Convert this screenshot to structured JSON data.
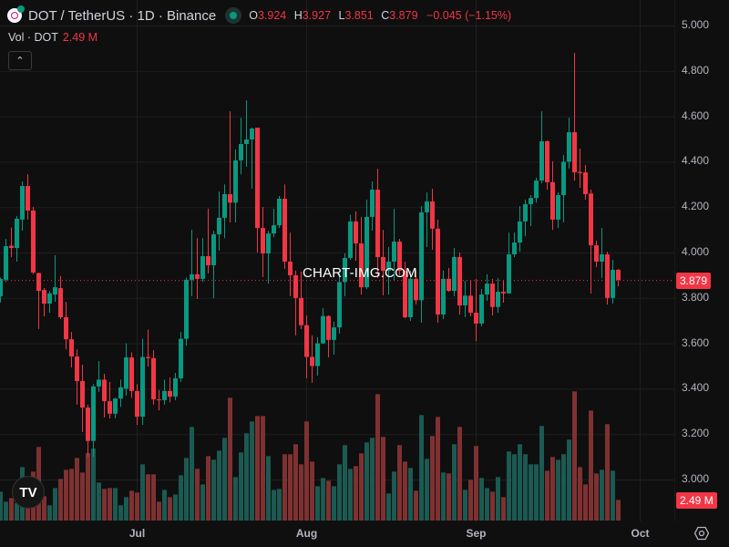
{
  "header": {
    "symbol_title": "DOT / TetherUS · 1D · Binance",
    "ohlc": {
      "o_label": "O",
      "o": "3.924",
      "h_label": "H",
      "h": "3.927",
      "l_label": "L",
      "l": "3.851",
      "c_label": "C",
      "c": "3.879",
      "change": "−0.045 (−1.15%)"
    }
  },
  "volume_legend": {
    "label": "Vol · DOT",
    "value": "2.49 M"
  },
  "collapse_icon": "chevron-up-icon",
  "price_axis": {
    "ticks": [
      "5.000",
      "4.800",
      "4.600",
      "4.400",
      "4.200",
      "4.000",
      "3.800",
      "3.600",
      "3.400",
      "3.200",
      "3.000"
    ],
    "last_price": "3.879",
    "last_volume": "2.49 M"
  },
  "time_axis": {
    "ticks": [
      "Jul",
      "Aug",
      "Sep",
      "Oct"
    ]
  },
  "watermark": "CHART-IMG.COM",
  "logo_text": "TV",
  "colors": {
    "up": "#089981",
    "down": "#f23645",
    "vol_up": "#1b5a52",
    "vol_down": "#7f3131",
    "grid": "#1f1f1f"
  },
  "chart_data": {
    "type": "candlestick",
    "title": "DOT / TetherUS · 1D · Binance",
    "ylim": [
      2.9,
      5.0
    ],
    "columns": [
      "open",
      "high",
      "low",
      "close",
      "volume_M"
    ],
    "candles": [
      [
        3.807,
        3.89,
        3.78,
        3.884,
        3.48
      ],
      [
        3.88,
        4.06,
        3.87,
        4.028,
        2.27
      ],
      [
        4.03,
        4.11,
        3.98,
        4.02,
        2.71
      ],
      [
        4.02,
        4.161,
        3.96,
        4.149,
        2.1
      ],
      [
        4.145,
        4.313,
        4.096,
        4.293,
        6.45
      ],
      [
        4.293,
        4.345,
        4.145,
        4.185,
        2.2
      ],
      [
        4.185,
        4.201,
        3.904,
        3.912,
        5.9
      ],
      [
        3.91,
        3.91,
        3.663,
        3.831,
        8.87
      ],
      [
        3.835,
        3.843,
        3.719,
        3.775,
        2.93
      ],
      [
        3.775,
        3.831,
        3.735,
        3.82,
        1.84
      ],
      [
        3.815,
        3.988,
        3.783,
        3.847,
        3.92
      ],
      [
        3.843,
        3.896,
        3.707,
        3.715,
        5.02
      ],
      [
        3.715,
        3.783,
        3.574,
        3.618,
        6.12
      ],
      [
        3.618,
        3.65,
        3.494,
        3.542,
        6.23
      ],
      [
        3.542,
        3.574,
        3.33,
        3.434,
        7.55
      ],
      [
        3.434,
        3.506,
        3.209,
        3.317,
        5.79
      ],
      [
        3.317,
        3.33,
        3.1,
        3.17,
        8.13
      ],
      [
        3.17,
        3.42,
        3.1,
        3.41,
        8.68
      ],
      [
        3.41,
        3.522,
        3.386,
        3.44,
        4.58
      ],
      [
        3.44,
        3.466,
        3.273,
        3.345,
        3.81
      ],
      [
        3.345,
        3.43,
        3.269,
        3.29,
        3.92
      ],
      [
        3.29,
        3.36,
        3.27,
        3.357,
        3.92
      ],
      [
        3.357,
        3.44,
        3.32,
        3.406,
        1.84
      ],
      [
        3.4,
        3.6,
        3.37,
        3.538,
        2.82
      ],
      [
        3.538,
        3.56,
        3.36,
        3.39,
        3.59
      ],
      [
        3.39,
        3.42,
        3.241,
        3.277,
        3.37
      ],
      [
        3.277,
        3.62,
        3.241,
        3.54,
        6.78
      ],
      [
        3.54,
        3.66,
        3.498,
        3.535,
        5.57
      ],
      [
        3.535,
        3.57,
        3.33,
        3.353,
        5.57
      ],
      [
        3.353,
        3.394,
        3.305,
        3.35,
        2.27
      ],
      [
        3.35,
        3.44,
        3.33,
        3.39,
        3.7
      ],
      [
        3.39,
        3.45,
        3.34,
        3.365,
        2.82
      ],
      [
        3.365,
        3.47,
        3.35,
        3.446,
        3.15
      ],
      [
        3.446,
        3.65,
        3.43,
        3.62,
        5.46
      ],
      [
        3.62,
        3.89,
        3.59,
        3.88,
        7.55
      ],
      [
        3.88,
        4.1,
        3.807,
        3.904,
        11.29
      ],
      [
        3.904,
        4.064,
        3.795,
        3.884,
        6.23
      ],
      [
        3.884,
        4.064,
        3.87,
        3.984,
        4.36
      ],
      [
        3.984,
        4.193,
        3.908,
        3.944,
        7.77
      ],
      [
        3.944,
        4.096,
        3.799,
        4.08,
        7.33
      ],
      [
        4.08,
        4.269,
        4.008,
        4.153,
        8.43
      ],
      [
        4.153,
        4.3,
        4.064,
        4.257,
        9.97
      ],
      [
        4.257,
        4.622,
        4.133,
        4.22,
        14.8
      ],
      [
        4.22,
        4.454,
        4.133,
        4.406,
        5.24
      ],
      [
        4.406,
        4.594,
        4.345,
        4.478,
        8.21
      ],
      [
        4.478,
        4.67,
        4.378,
        4.498,
        10.52
      ],
      [
        4.498,
        4.55,
        4.281,
        4.546,
        11.95
      ],
      [
        4.55,
        4.55,
        4.0,
        4.108,
        12.6
      ],
      [
        4.108,
        4.201,
        3.892,
        3.996,
        12.6
      ],
      [
        3.996,
        4.096,
        3.863,
        4.084,
        7.77
      ],
      [
        4.084,
        4.193,
        4.068,
        4.12,
        3.7
      ],
      [
        4.12,
        4.249,
        4.108,
        4.237,
        3.81
      ],
      [
        4.237,
        4.3,
        3.928,
        3.96,
        7.99
      ],
      [
        3.96,
        4.088,
        3.807,
        3.9,
        7.99
      ],
      [
        3.9,
        3.92,
        3.635,
        3.8,
        9.2
      ],
      [
        3.8,
        3.916,
        3.663,
        3.68,
        6.78
      ],
      [
        3.68,
        3.723,
        3.446,
        3.54,
        11.95
      ],
      [
        3.54,
        3.635,
        3.426,
        3.5,
        7.11
      ],
      [
        3.5,
        3.627,
        3.458,
        3.6,
        4.14
      ],
      [
        3.6,
        3.755,
        3.598,
        3.72,
        5.13
      ],
      [
        3.72,
        3.723,
        3.538,
        3.615,
        4.8
      ],
      [
        3.615,
        3.695,
        3.55,
        3.67,
        4.14
      ],
      [
        3.67,
        3.908,
        3.643,
        3.87,
        6.78
      ],
      [
        3.87,
        3.996,
        3.807,
        3.976,
        9.09
      ],
      [
        3.976,
        4.165,
        3.968,
        4.137,
        6.23
      ],
      [
        4.137,
        4.181,
        3.964,
        4.04,
        6.56
      ],
      [
        4.04,
        4.157,
        3.815,
        3.847,
        8.1
      ],
      [
        3.847,
        4.233,
        3.839,
        4.157,
        9.42
      ],
      [
        4.157,
        4.313,
        4.096,
        4.277,
        9.97
      ],
      [
        4.277,
        4.369,
        3.888,
        3.98,
        15.24
      ],
      [
        3.98,
        4.1,
        3.811,
        3.92,
        10.08
      ],
      [
        3.92,
        4.024,
        3.815,
        3.96,
        3.26
      ],
      [
        3.96,
        4.193,
        3.88,
        4.048,
        5.9
      ],
      [
        4.048,
        4.06,
        3.9,
        3.92,
        9.09
      ],
      [
        3.92,
        3.96,
        3.711,
        3.715,
        7.11
      ],
      [
        3.715,
        3.92,
        3.699,
        3.884,
        6.34
      ],
      [
        3.884,
        3.92,
        3.771,
        3.79,
        3.59
      ],
      [
        3.79,
        4.205,
        3.691,
        4.177,
        12.71
      ],
      [
        4.177,
        4.265,
        4.024,
        4.225,
        7.44
      ],
      [
        4.225,
        4.281,
        4.012,
        4.105,
        10.19
      ],
      [
        4.105,
        4.145,
        3.691,
        3.727,
        12.49
      ],
      [
        3.727,
        3.92,
        3.707,
        3.884,
        5.79
      ],
      [
        3.884,
        3.932,
        3.827,
        3.831,
        5.68
      ],
      [
        3.831,
        4.02,
        3.807,
        3.98,
        9.2
      ],
      [
        3.98,
        4.0,
        3.727,
        3.767,
        11.29
      ],
      [
        3.767,
        3.876,
        3.715,
        3.81,
        3.7
      ],
      [
        3.81,
        3.876,
        3.719,
        3.735,
        4.91
      ],
      [
        3.735,
        3.884,
        3.61,
        3.687,
        8.98
      ],
      [
        3.687,
        3.839,
        3.675,
        3.815,
        5.13
      ],
      [
        3.815,
        3.904,
        3.787,
        3.863,
        3.92
      ],
      [
        3.863,
        3.884,
        3.723,
        3.76,
        3.48
      ],
      [
        3.76,
        3.888,
        3.735,
        3.827,
        5.24
      ],
      [
        3.827,
        3.876,
        3.779,
        3.82,
        2.82
      ],
      [
        3.82,
        4.088,
        3.819,
        3.992,
        8.32
      ],
      [
        3.992,
        4.088,
        3.98,
        4.044,
        7.99
      ],
      [
        4.044,
        4.205,
        4.004,
        4.137,
        9.2
      ],
      [
        4.137,
        4.233,
        4.072,
        4.213,
        7.99
      ],
      [
        4.213,
        4.253,
        4.116,
        4.24,
        6.78
      ],
      [
        4.24,
        4.33,
        4.22,
        4.317,
        6.78
      ],
      [
        4.317,
        4.622,
        4.305,
        4.49,
        11.4
      ],
      [
        4.49,
        4.494,
        4.277,
        4.31,
        6.01
      ],
      [
        4.31,
        4.402,
        4.1,
        4.145,
        7.66
      ],
      [
        4.145,
        4.265,
        4.108,
        4.253,
        7.33
      ],
      [
        4.253,
        4.43,
        4.133,
        4.4,
        7.99
      ],
      [
        4.4,
        4.594,
        4.37,
        4.53,
        9.75
      ],
      [
        4.53,
        4.88,
        4.317,
        4.353,
        15.57
      ],
      [
        4.355,
        4.458,
        4.285,
        4.35,
        6.45
      ],
      [
        4.353,
        4.386,
        4.233,
        4.257,
        4.36
      ],
      [
        4.26,
        4.277,
        3.819,
        4.032,
        13.26
      ],
      [
        4.032,
        4.052,
        3.936,
        3.96,
        5.68
      ],
      [
        3.96,
        4.108,
        3.888,
        3.992,
        6.12
      ],
      [
        3.992,
        4.004,
        3.771,
        3.8,
        11.62
      ],
      [
        3.8,
        3.968,
        3.775,
        3.924,
        6.01
      ],
      [
        3.924,
        3.927,
        3.851,
        3.879,
        2.49
      ]
    ],
    "last_price": 3.879,
    "time_ticks": [
      {
        "label": "Jul",
        "index": 25
      },
      {
        "label": "Aug",
        "index": 56
      },
      {
        "label": "Sep",
        "index": 87
      },
      {
        "label": "Oct",
        "index": 117
      }
    ]
  }
}
